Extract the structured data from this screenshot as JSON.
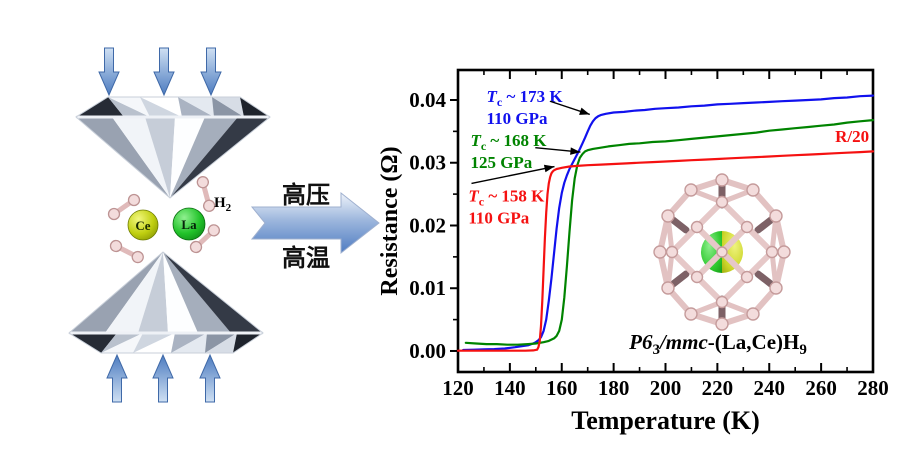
{
  "anvil": {
    "h2": {
      "symbol": "H",
      "sub": "2"
    },
    "ce_label": "Ce",
    "la_label": "La"
  },
  "process_arrow": {
    "line1": "高压",
    "line2": "高温"
  },
  "inset": {
    "space_group": "P6",
    "space_group_sub": "3",
    "space_group_rest": "/mmc",
    "compound": "-(La,Ce)H",
    "compound_sub": "9"
  },
  "colors": {
    "curve_blue": "#1111ee",
    "curve_green": "#008400",
    "curve_red": "#f51111",
    "hydrogen_pink": "#f3dcdc",
    "bond_pink": "#e2c2c2",
    "dark_bond": "#7d6166",
    "ce_yellow": "#c0cf10",
    "la_green": "#22c32a",
    "arrow_blue": "#4f7cc2"
  },
  "chart_data": {
    "type": "line",
    "title": "",
    "xlabel": "Temperature (K)",
    "ylabel": "Resistance (Ω)",
    "xlim": [
      120,
      280
    ],
    "ylim": [
      -0.00335,
      0.04478
    ],
    "xticks_major": [
      120,
      140,
      160,
      180,
      200,
      220,
      240,
      260,
      280
    ],
    "xtick_minor_step": 10,
    "yticks_major": [
      0.0,
      0.01,
      0.02,
      0.03,
      0.04
    ],
    "ytick_minor_step": 0.005,
    "ytick_decimals": 2,
    "grid": false,
    "legend_position": "none",
    "series": [
      {
        "id": "blue-110GPa",
        "name": "110 GPa (Tc ~ 173 K)",
        "color": "#1111ee",
        "points": [
          [
            122,
            0.00015
          ],
          [
            126,
            0.0002
          ],
          [
            130,
            0.00025
          ],
          [
            134,
            0.0003
          ],
          [
            138,
            0.0004
          ],
          [
            142,
            0.0006
          ],
          [
            145,
            0.0008
          ],
          [
            147,
            0.0009
          ],
          [
            149,
            0.0012
          ],
          [
            150,
            0.0014
          ],
          [
            151,
            0.0017
          ],
          [
            152,
            0.0022
          ],
          [
            153,
            0.0032
          ],
          [
            154,
            0.005
          ],
          [
            155,
            0.008
          ],
          [
            156,
            0.0115
          ],
          [
            157,
            0.0155
          ],
          [
            158,
            0.0195
          ],
          [
            159,
            0.0228
          ],
          [
            160,
            0.0252
          ],
          [
            161,
            0.0268
          ],
          [
            162,
            0.028
          ],
          [
            163,
            0.029
          ],
          [
            164,
            0.0298
          ],
          [
            165,
            0.0306
          ],
          [
            166,
            0.0314
          ],
          [
            167,
            0.0322
          ],
          [
            168,
            0.0331
          ],
          [
            169,
            0.034
          ],
          [
            170,
            0.035
          ],
          [
            171,
            0.0359
          ],
          [
            172,
            0.0366
          ],
          [
            173,
            0.0371
          ],
          [
            174,
            0.0374
          ],
          [
            175,
            0.0376
          ],
          [
            177,
            0.0378
          ],
          [
            180,
            0.038
          ],
          [
            184,
            0.0381
          ],
          [
            188,
            0.0383
          ],
          [
            192,
            0.0384
          ],
          [
            196,
            0.0386
          ],
          [
            200,
            0.0387
          ],
          [
            205,
            0.0388
          ],
          [
            210,
            0.039
          ],
          [
            215,
            0.0391
          ],
          [
            220,
            0.0393
          ],
          [
            225,
            0.0394
          ],
          [
            230,
            0.0395
          ],
          [
            235,
            0.0396
          ],
          [
            240,
            0.0397
          ],
          [
            245,
            0.0398
          ],
          [
            250,
            0.0399
          ],
          [
            255,
            0.04
          ],
          [
            260,
            0.0401
          ],
          [
            265,
            0.0403
          ],
          [
            270,
            0.0404
          ],
          [
            275,
            0.0406
          ],
          [
            280,
            0.0407
          ]
        ]
      },
      {
        "id": "green-125GPa",
        "name": "125 GPa (Tc ~ 168 K)",
        "color": "#008400",
        "points": [
          [
            123,
            0.0013
          ],
          [
            127,
            0.0012
          ],
          [
            131,
            0.0011
          ],
          [
            135,
            0.0011
          ],
          [
            139,
            0.001
          ],
          [
            143,
            0.001
          ],
          [
            147,
            0.0011
          ],
          [
            150,
            0.0012
          ],
          [
            153,
            0.0014
          ],
          [
            155,
            0.0016
          ],
          [
            157,
            0.002
          ],
          [
            158,
            0.0024
          ],
          [
            159,
            0.0032
          ],
          [
            160,
            0.005
          ],
          [
            161,
            0.0085
          ],
          [
            162,
            0.0135
          ],
          [
            163,
            0.019
          ],
          [
            164,
            0.024
          ],
          [
            165,
            0.0275
          ],
          [
            166,
            0.0296
          ],
          [
            167,
            0.0308
          ],
          [
            168,
            0.0314
          ],
          [
            169,
            0.0318
          ],
          [
            170,
            0.032
          ],
          [
            172,
            0.0322
          ],
          [
            175,
            0.0324
          ],
          [
            178,
            0.0326
          ],
          [
            182,
            0.0328
          ],
          [
            186,
            0.033
          ],
          [
            190,
            0.0331
          ],
          [
            195,
            0.0333
          ],
          [
            200,
            0.0334
          ],
          [
            205,
            0.0336
          ],
          [
            210,
            0.0338
          ],
          [
            215,
            0.034
          ],
          [
            220,
            0.0342
          ],
          [
            225,
            0.0344
          ],
          [
            230,
            0.0346
          ],
          [
            235,
            0.0348
          ],
          [
            240,
            0.0351
          ],
          [
            245,
            0.0353
          ],
          [
            250,
            0.0355
          ],
          [
            255,
            0.0357
          ],
          [
            260,
            0.0359
          ],
          [
            265,
            0.0361
          ],
          [
            270,
            0.0364
          ],
          [
            275,
            0.0366
          ],
          [
            280,
            0.0368
          ]
        ]
      },
      {
        "id": "red-110GPa-R20",
        "name": "110 GPa, R/20 (Tc ~ 158 K)",
        "color": "#f51111",
        "points": [
          [
            120,
            5e-05
          ],
          [
            130,
            5e-05
          ],
          [
            140,
            5e-05
          ],
          [
            146,
            5e-05
          ],
          [
            149,
            0.0001
          ],
          [
            150.5,
            0.0002
          ],
          [
            151,
            0.0006
          ],
          [
            151.5,
            0.0015
          ],
          [
            152,
            0.004
          ],
          [
            152.5,
            0.008
          ],
          [
            153,
            0.013
          ],
          [
            153.5,
            0.018
          ],
          [
            154,
            0.022
          ],
          [
            154.5,
            0.025
          ],
          [
            155,
            0.0267
          ],
          [
            155.5,
            0.0277
          ],
          [
            156,
            0.0283
          ],
          [
            156.5,
            0.0286
          ],
          [
            157,
            0.0288
          ],
          [
            158,
            0.029
          ],
          [
            159,
            0.0291
          ],
          [
            160,
            0.0292
          ],
          [
            163,
            0.0294
          ],
          [
            166,
            0.0295
          ],
          [
            170,
            0.0296
          ],
          [
            175,
            0.0297
          ],
          [
            180,
            0.0298
          ],
          [
            185,
            0.0299
          ],
          [
            190,
            0.03
          ],
          [
            195,
            0.0301
          ],
          [
            200,
            0.0302
          ],
          [
            205,
            0.0303
          ],
          [
            210,
            0.0304
          ],
          [
            215,
            0.0305
          ],
          [
            220,
            0.0306
          ],
          [
            225,
            0.0307
          ],
          [
            230,
            0.0308
          ],
          [
            235,
            0.0309
          ],
          [
            240,
            0.031
          ],
          [
            245,
            0.0311
          ],
          [
            250,
            0.0312
          ],
          [
            255,
            0.0313
          ],
          [
            260,
            0.0314
          ],
          [
            265,
            0.0315
          ],
          [
            270,
            0.0316
          ],
          [
            275,
            0.0317
          ],
          [
            280,
            0.0318
          ]
        ]
      }
    ],
    "annotations": [
      {
        "tc": "173 K",
        "pressure": "110 GPa",
        "color": "#1111ee",
        "tx": 131,
        "ty": 0.0406,
        "ax1": 155.5,
        "ay1": 0.0398,
        "ax2": 170.8,
        "ay2": 0.0377
      },
      {
        "tc": "168 K",
        "pressure": "125 GPa",
        "color": "#008400",
        "tx": 124.8,
        "ty": 0.0336,
        "ax1": 149.8,
        "ay1": 0.0324,
        "ax2": 167.2,
        "ay2": 0.0317
      },
      {
        "tc": "158 K",
        "pressure": "110 GPa",
        "color": "#f51111",
        "tx": 124.0,
        "ty": 0.0248,
        "ax1": 125.2,
        "ay1": 0.0267,
        "ax2": 157.2,
        "ay2": 0.0294
      }
    ],
    "curve_label": {
      "text": "R/20",
      "color": "#f51111",
      "x": 278.5,
      "y": 0.0333
    }
  }
}
